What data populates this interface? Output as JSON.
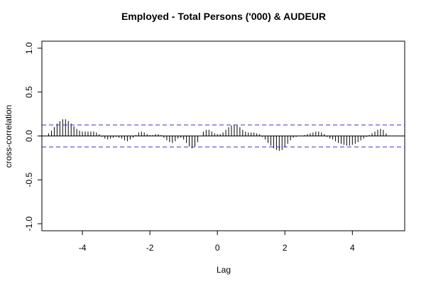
{
  "chart_data": {
    "type": "bar",
    "title": "Employed - Total Persons ('000) & AUDEUR",
    "xlabel": "Lag",
    "ylabel": "cross-correlation",
    "xlim": [
      -5.2,
      5.55
    ],
    "ylim": [
      -1.08,
      1.08
    ],
    "x_ticks": [
      -4,
      -2,
      0,
      2,
      4
    ],
    "y_ticks": [
      -1.0,
      -0.5,
      0.0,
      0.5,
      1.0
    ],
    "x_tick_labels": [
      "-4",
      "-2",
      "0",
      "2",
      "4"
    ],
    "y_tick_labels": [
      "-1.0",
      "-0.5",
      "0.0",
      "0.5",
      "1.0"
    ],
    "confidence_bound": 0.125,
    "bound_color": "#3333cc",
    "bar_color": "#000000",
    "lag_step": 0.0833333,
    "lag_start": -5.0,
    "values": [
      0.03,
      0.06,
      0.1,
      0.14,
      0.17,
      0.19,
      0.19,
      0.17,
      0.14,
      0.11,
      0.08,
      0.06,
      0.05,
      0.05,
      0.05,
      0.05,
      0.05,
      0.04,
      0.02,
      -0.01,
      -0.03,
      -0.04,
      -0.03,
      -0.02,
      -0.01,
      -0.02,
      -0.03,
      -0.05,
      -0.06,
      -0.04,
      -0.02,
      0.01,
      0.04,
      0.05,
      0.04,
      0.02,
      0.01,
      0.01,
      0.02,
      0.02,
      0.01,
      -0.02,
      -0.05,
      -0.07,
      -0.08,
      -0.06,
      -0.03,
      -0.02,
      -0.04,
      -0.08,
      -0.12,
      -0.14,
      -0.12,
      -0.07,
      0.0,
      0.05,
      0.07,
      0.07,
      0.05,
      0.03,
      0.02,
      0.02,
      0.04,
      0.07,
      0.1,
      0.12,
      0.13,
      0.12,
      0.1,
      0.07,
      0.05,
      0.04,
      0.04,
      0.04,
      0.03,
      0.02,
      -0.01,
      -0.04,
      -0.08,
      -0.11,
      -0.14,
      -0.16,
      -0.17,
      -0.16,
      -0.13,
      -0.09,
      -0.05,
      -0.02,
      -0.01,
      0.0,
      0.0,
      0.01,
      0.02,
      0.03,
      0.04,
      0.05,
      0.05,
      0.04,
      0.02,
      -0.01,
      -0.03,
      -0.04,
      -0.06,
      -0.08,
      -0.09,
      -0.1,
      -0.11,
      -0.11,
      -0.1,
      -0.09,
      -0.07,
      -0.05,
      -0.03,
      -0.01,
      0.01,
      0.03,
      0.05,
      0.07,
      0.08,
      0.07,
      0.03
    ]
  }
}
